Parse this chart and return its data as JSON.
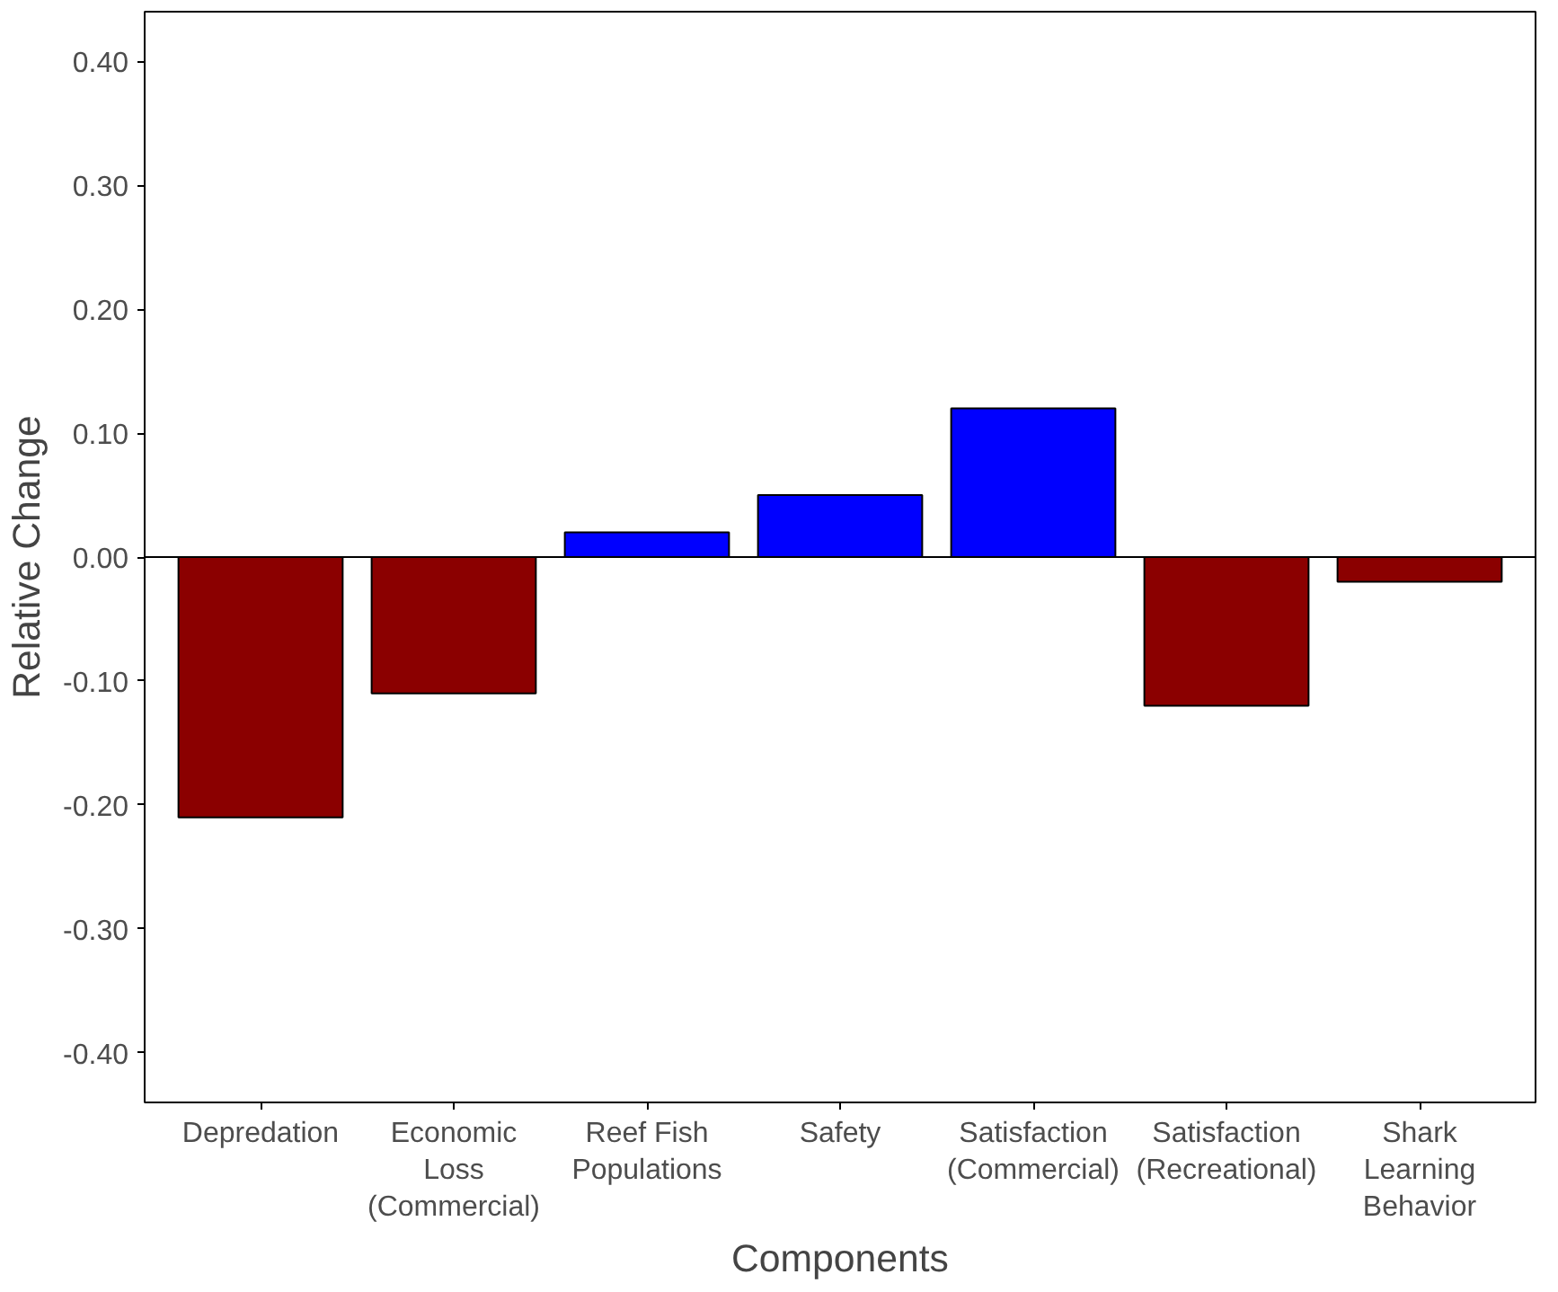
{
  "chart_data": {
    "type": "bar",
    "categories": [
      "Depredation",
      "Economic\nLoss\n(Commercial)",
      "Reef Fish\nPopulations",
      "Safety",
      "Satisfaction\n(Commercial)",
      "Satisfaction\n(Recreational)",
      "Shark\nLearning\nBehavior"
    ],
    "values": [
      -0.21,
      -0.11,
      0.02,
      0.05,
      0.12,
      -0.12,
      -0.02
    ],
    "colors": [
      "#8b0000",
      "#8b0000",
      "#0000ff",
      "#0000ff",
      "#0000ff",
      "#8b0000",
      "#8b0000"
    ],
    "xlabel": "Components",
    "ylabel": "Relative Change",
    "ylim": [
      -0.44,
      0.44
    ],
    "yticks": [
      {
        "value": -0.4,
        "label": "-0.40"
      },
      {
        "value": -0.3,
        "label": "-0.30"
      },
      {
        "value": -0.2,
        "label": "-0.20"
      },
      {
        "value": -0.1,
        "label": "-0.10"
      },
      {
        "value": 0,
        "label": "0.00"
      },
      {
        "value": 0.1,
        "label": "0.10"
      },
      {
        "value": 0.2,
        "label": "0.20"
      },
      {
        "value": 0.3,
        "label": "0.30"
      },
      {
        "value": 0.4,
        "label": "0.40"
      }
    ],
    "ref_lines": [
      {
        "axis": "y",
        "value": 0,
        "color": "#000000"
      }
    ],
    "grid": false
  }
}
